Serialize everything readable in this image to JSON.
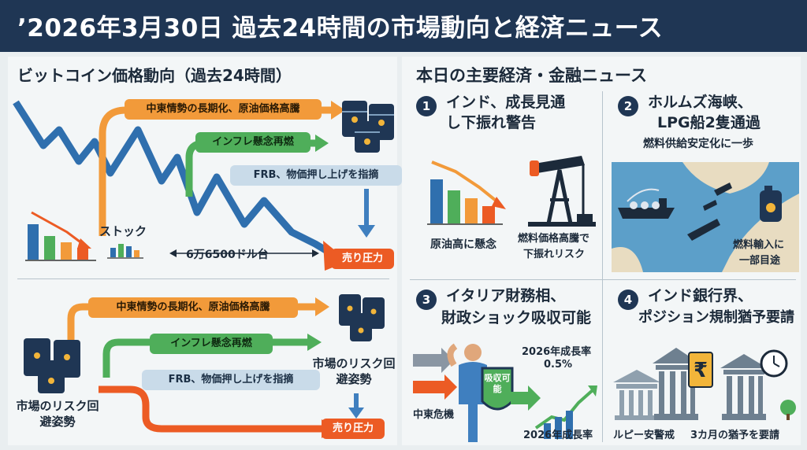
{
  "header": {
    "title": "’2026年3月30日 過去24時間の市場動向と経済ニュース"
  },
  "left": {
    "title": "ビットコイン価格動向（過去24時間）",
    "top_flow": {
      "orange_label": "中東情勢の長期化、原油価格高騰",
      "green_label": "インフレ懸念再燃",
      "blue_label": "FRB、物価押し上げを指摘",
      "sell_label": "売り圧力",
      "stock_label": "ストック",
      "price_label": "6万6500ドル台"
    },
    "bottom_flow": {
      "orange_label": "中東情勢の長期化、原油価格高騰",
      "green_label": "インフレ懸念再燃",
      "blue_label": "FRB、物価押し上げを指摘",
      "sell_label": "売り圧力",
      "risk_label_left": "市場のリスク回避姿勢",
      "risk_label_right": "市場のリスク回避姿勢"
    }
  },
  "right": {
    "title": "本日の主要経済・金融ニュース",
    "news": [
      {
        "num": "1",
        "title_l1": "インド、成長見通",
        "title_l2": "し下振れ警告",
        "cap_a": "原油高に懸念",
        "cap_b_l1": "燃料価格高騰で",
        "cap_b_l2": "下振れリスク"
      },
      {
        "num": "2",
        "title_l1": "ホルムズ海峡、",
        "title_l2": "LPG船2隻通過",
        "sub": "燃料供給安定化に一歩",
        "cap_l1": "燃料輸入に",
        "cap_l2": "一部目途"
      },
      {
        "num": "3",
        "title_l1": "イタリア財務相、",
        "title_l2": "財政ショック吸収可能",
        "shield": "吸収可能",
        "growth_top_l1": "2026年成長率",
        "growth_top_l2": "0.5%",
        "growth_bottom": "2026年成長率",
        "crisis": "中東危機"
      },
      {
        "num": "4",
        "title_l1": "インド銀行界、",
        "title_l2": "ポジション規制猶予要請",
        "rupee": "₹",
        "cap_a": "ルピー安警戒",
        "cap_b": "3カ月の猶予を要請"
      }
    ]
  },
  "colors": {
    "navy": "#1f3654",
    "orange": "#f29a3a",
    "green": "#4fae5a",
    "red": "#ec5b24",
    "blue": "#3f7fbf"
  }
}
